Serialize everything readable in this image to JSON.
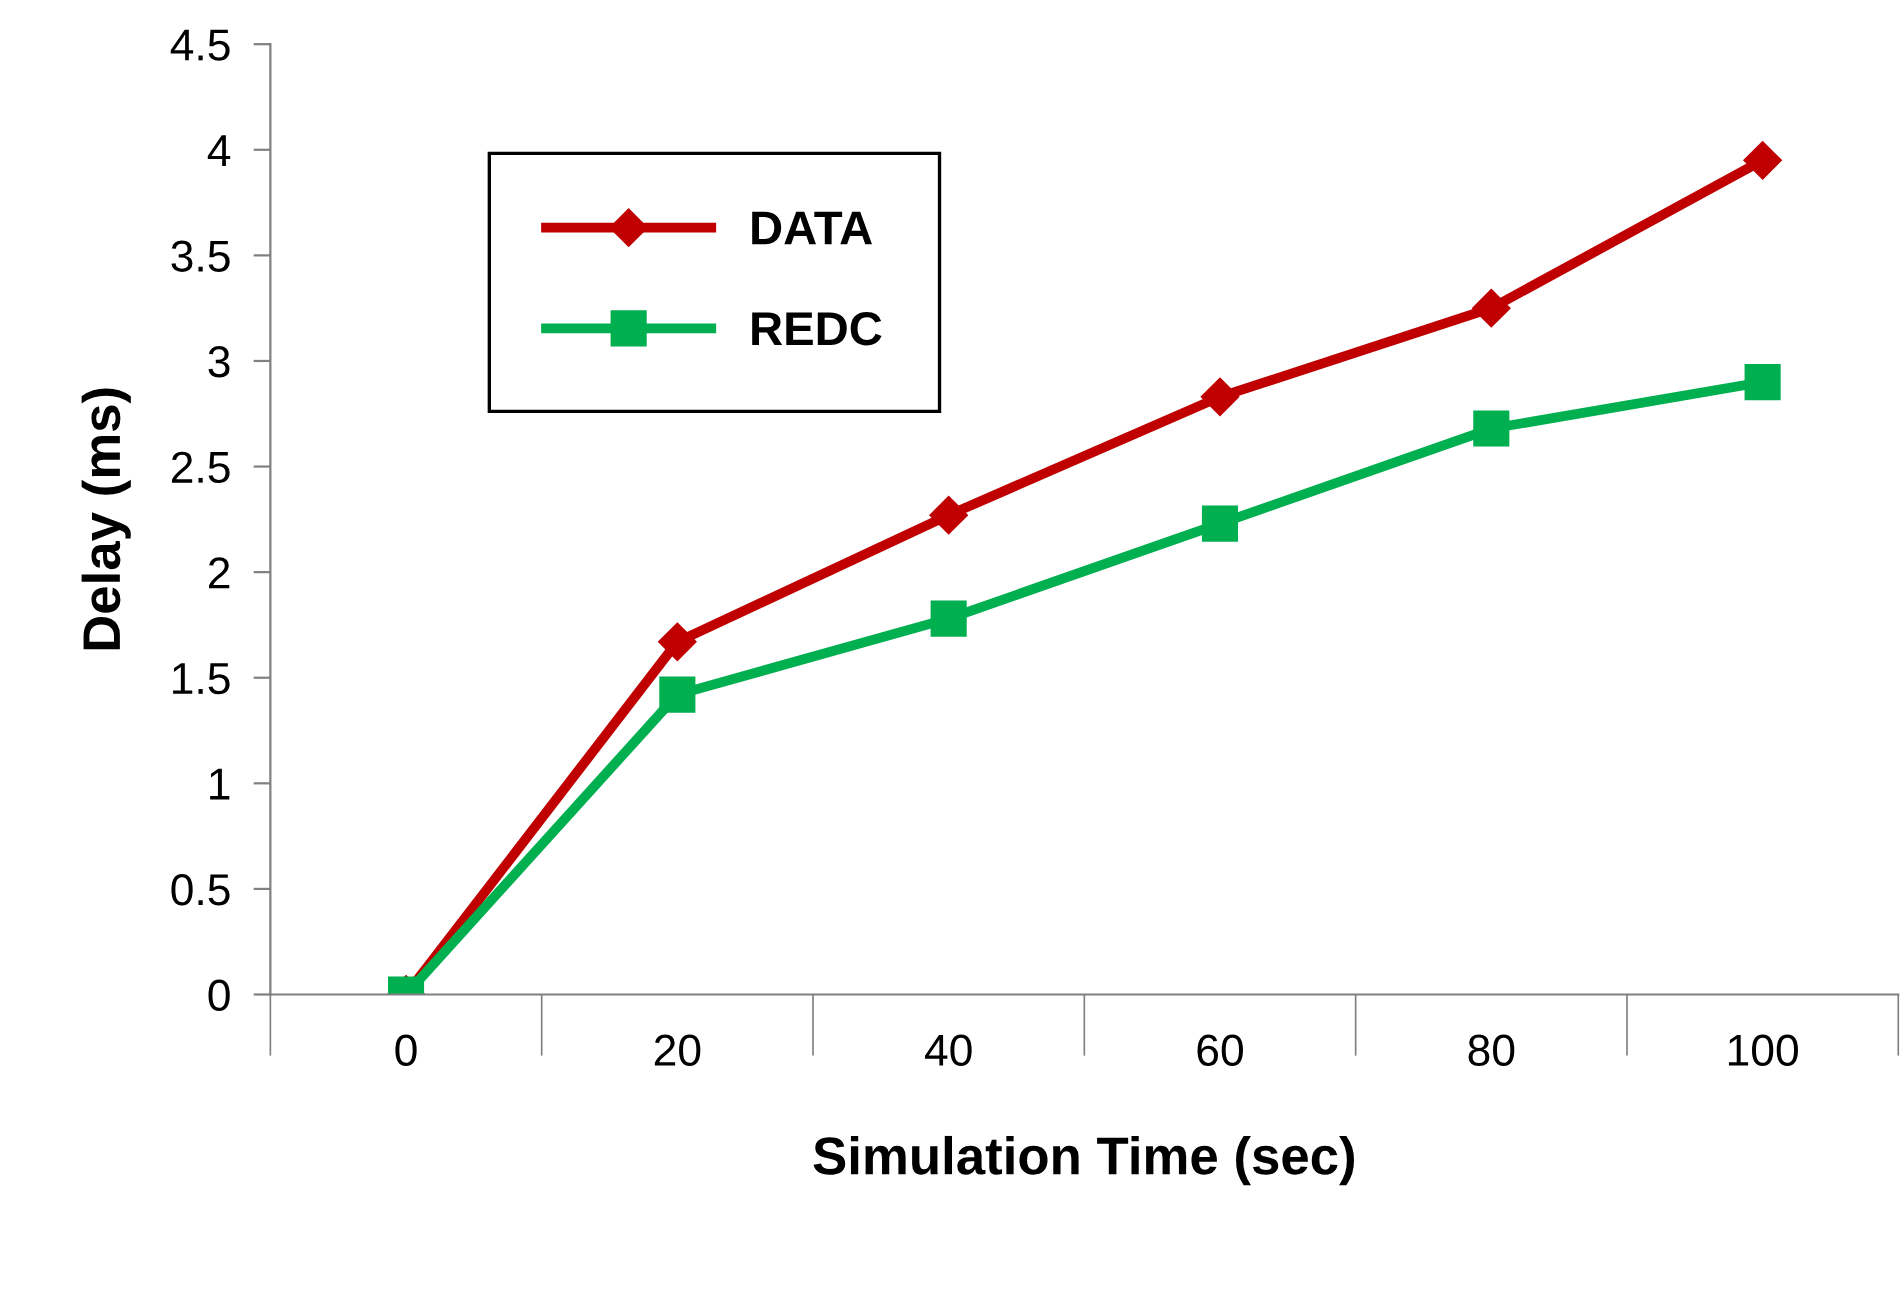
{
  "chart_data": {
    "type": "line",
    "xlabel": "Simulation Time (sec)",
    "ylabel": "Delay (ms)",
    "categories": [
      "0",
      "20",
      "40",
      "60",
      "80",
      "100"
    ],
    "series": [
      {
        "name": "DATA",
        "color": "#c00000",
        "marker": "diamond",
        "values": [
          0,
          1.67,
          2.27,
          2.83,
          3.25,
          3.95
        ]
      },
      {
        "name": "REDC",
        "color": "#00b050",
        "marker": "square",
        "values": [
          0,
          1.42,
          1.78,
          2.23,
          2.68,
          2.9
        ]
      }
    ],
    "ylim": [
      0,
      4.5
    ],
    "yticks": [
      0,
      0.5,
      1,
      1.5,
      2,
      2.5,
      3,
      3.5,
      4,
      4.5
    ],
    "grid": false,
    "legend": "top left",
    "line_style": "solid"
  }
}
